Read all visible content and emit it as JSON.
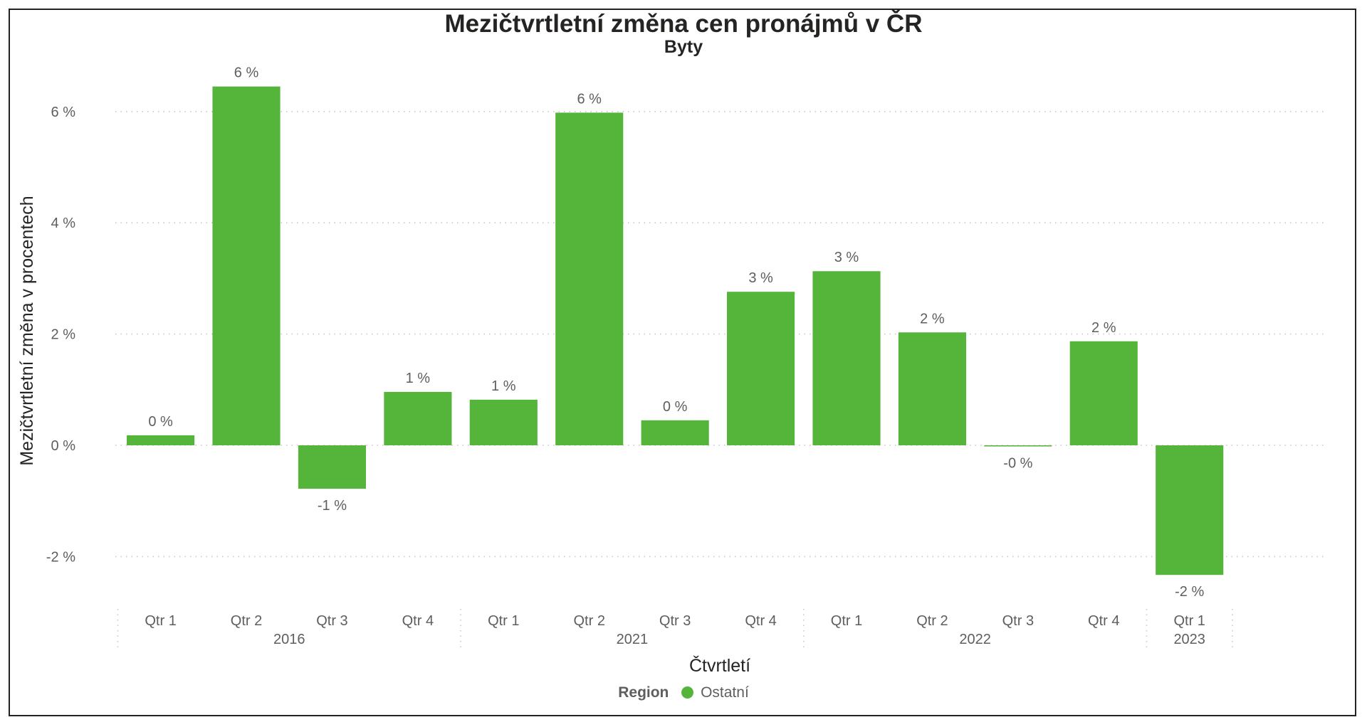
{
  "colors": {
    "bar": "#54b53a",
    "grid": "#c8c8c8",
    "text": "#605e5c",
    "title": "#252423"
  },
  "chart_data": {
    "type": "bar",
    "title": "Mezičtvrtletní změna cen pronájmů v ČR",
    "subtitle": "Byty",
    "ylabel": "Mezičtvrtletní změna v procentech",
    "xlabel": "Čtvrtletí",
    "ylim": [
      -3,
      7.2
    ],
    "yticks": [
      -2,
      0,
      2,
      4,
      6
    ],
    "ytick_labels": [
      "-2 %",
      "0 %",
      "2 %",
      "4 %",
      "6 %"
    ],
    "grid": true,
    "legend_position": "bottom",
    "categories": [
      "Qtr 1",
      "Qtr 2",
      "Qtr 3",
      "Qtr 4",
      "Qtr 1",
      "Qtr 2",
      "Qtr 3",
      "Qtr 4",
      "Qtr 1",
      "Qtr 2",
      "Qtr 3",
      "Qtr 4",
      "Qtr 1"
    ],
    "groups": [
      {
        "label": "2016",
        "count": 4
      },
      {
        "label": "2021",
        "count": 4
      },
      {
        "label": "2022",
        "count": 4
      },
      {
        "label": "2023",
        "count": 1
      }
    ],
    "series": [
      {
        "name": "Ostatní",
        "values": [
          0.18,
          6.45,
          -0.78,
          0.96,
          0.82,
          5.98,
          0.45,
          2.76,
          3.13,
          2.03,
          -0.02,
          1.87,
          -2.33
        ],
        "labels": [
          "0 %",
          "6 %",
          "-1 %",
          "1 %",
          "1 %",
          "6 %",
          "0 %",
          "3 %",
          "3 %",
          "2 %",
          "-0 %",
          "2 %",
          "-2 %"
        ]
      }
    ]
  },
  "legend": {
    "title": "Region",
    "items": [
      "Ostatní"
    ]
  }
}
